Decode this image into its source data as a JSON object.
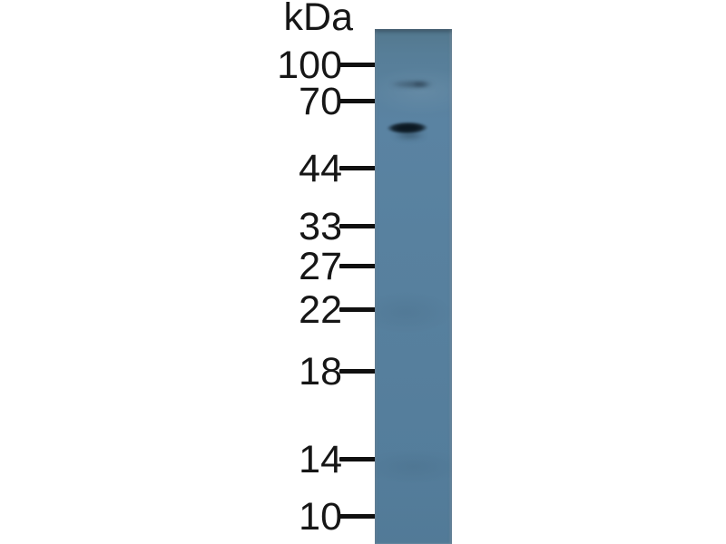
{
  "figure": {
    "type": "western-blot",
    "unit_label": "kDa",
    "background_color": "#ffffff",
    "text_color": "#161616",
    "tick_color": "#101010",
    "markers": [
      {
        "label": "100"
      },
      {
        "label": "70"
      },
      {
        "label": "44"
      },
      {
        "label": "33"
      },
      {
        "label": "27"
      },
      {
        "label": "22"
      },
      {
        "label": "18"
      },
      {
        "label": "14"
      },
      {
        "label": "10"
      }
    ],
    "lane": {
      "count": 1,
      "membrane_color": "#58819f",
      "bands": [
        {
          "name": "upper-faint-band",
          "intensity": "faint",
          "approx_kda": "85-90"
        },
        {
          "name": "main-band",
          "intensity": "strong",
          "approx_kda": "55-60",
          "color": "#0c1923"
        }
      ]
    }
  }
}
